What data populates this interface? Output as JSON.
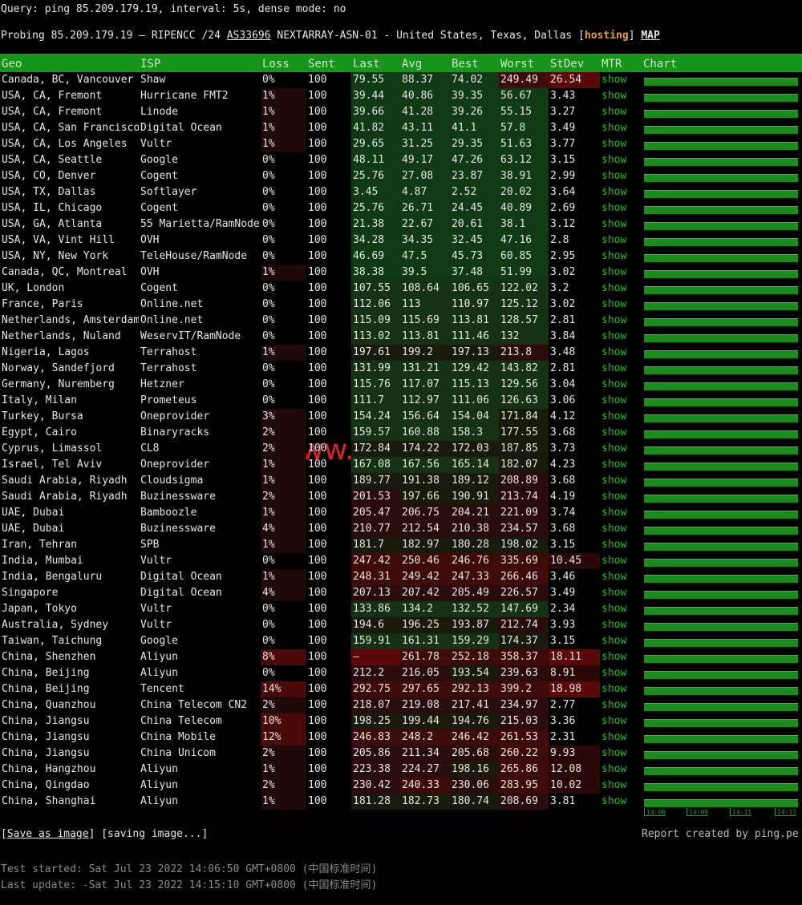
{
  "header": {
    "query": "Query: ping 85.209.179.19, interval: 5s, dense mode: no",
    "probe_prefix": "Probing 85.209.179.19 – RIPENCC /24 ",
    "asn": "AS33696",
    "probe_middle": " NEXTARRAY-ASN-01 - United States, Texas, Dallas ",
    "bracket_open": "[",
    "tag": "hosting",
    "bracket_close": "]",
    "map": "MAP"
  },
  "table": {
    "columns": [
      "Geo",
      "ISP",
      "Loss",
      "Sent",
      "Last",
      "Avg",
      "Best",
      "Worst",
      "StDev",
      "MTR",
      "Chart"
    ],
    "rows": [
      [
        "Canada, BC, Vancouver",
        "Shaw",
        "0%",
        "100",
        "79.55",
        "88.37",
        "74.02",
        "249.49",
        "26.54",
        "show"
      ],
      [
        "USA, CA, Fremont",
        "Hurricane FMT2",
        "1%",
        "100",
        "39.44",
        "40.86",
        "39.35",
        "56.67",
        "3.43",
        "show"
      ],
      [
        "USA, CA, Fremont",
        "Linode",
        "1%",
        "100",
        "39.66",
        "41.28",
        "39.26",
        "55.15",
        "3.27",
        "show"
      ],
      [
        "USA, CA, San Francisco",
        "Digital Ocean",
        "1%",
        "100",
        "41.82",
        "43.11",
        "41.1",
        "57.8",
        "3.49",
        "show"
      ],
      [
        "USA, CA, Los Angeles",
        "Vultr",
        "1%",
        "100",
        "29.65",
        "31.25",
        "29.35",
        "51.63",
        "3.77",
        "show"
      ],
      [
        "USA, CA, Seattle",
        "Google",
        "0%",
        "100",
        "48.11",
        "49.17",
        "47.26",
        "63.12",
        "3.15",
        "show"
      ],
      [
        "USA, CO, Denver",
        "Cogent",
        "0%",
        "100",
        "25.76",
        "27.08",
        "23.87",
        "38.91",
        "2.99",
        "show"
      ],
      [
        "USA, TX, Dallas",
        "Softlayer",
        "0%",
        "100",
        "3.45",
        "4.87",
        "2.52",
        "20.02",
        "3.64",
        "show"
      ],
      [
        "USA, IL, Chicago",
        "Cogent",
        "0%",
        "100",
        "25.76",
        "26.71",
        "24.45",
        "40.89",
        "2.69",
        "show"
      ],
      [
        "USA, GA, Atlanta",
        "55 Marietta/RamNode",
        "0%",
        "100",
        "21.38",
        "22.67",
        "20.61",
        "38.1",
        "3.12",
        "show"
      ],
      [
        "USA, VA, Vint Hill",
        "OVH",
        "0%",
        "100",
        "34.28",
        "34.35",
        "32.45",
        "47.16",
        "2.8",
        "show"
      ],
      [
        "USA, NY, New York",
        "TeleHouse/RamNode",
        "0%",
        "100",
        "46.69",
        "47.5",
        "45.73",
        "60.85",
        "2.95",
        "show"
      ],
      [
        "Canada, QC, Montreal",
        "OVH",
        "1%",
        "100",
        "38.38",
        "39.5",
        "37.48",
        "51.99",
        "3.02",
        "show"
      ],
      [
        "UK, London",
        "Cogent",
        "0%",
        "100",
        "107.55",
        "108.64",
        "106.65",
        "122.02",
        "3.2",
        "show"
      ],
      [
        "France, Paris",
        "Online.net",
        "0%",
        "100",
        "112.06",
        "113",
        "110.97",
        "125.12",
        "3.02",
        "show"
      ],
      [
        "Netherlands, Amsterdam",
        "Online.net",
        "0%",
        "100",
        "115.09",
        "115.69",
        "113.81",
        "128.57",
        "2.81",
        "show"
      ],
      [
        "Netherlands, Nuland",
        "WeservIT/RamNode",
        "0%",
        "100",
        "113.02",
        "113.81",
        "111.46",
        "132",
        "3.84",
        "show"
      ],
      [
        "Nigeria, Lagos",
        "Terrahost",
        "1%",
        "100",
        "197.61",
        "199.2",
        "197.13",
        "213.8",
        "3.48",
        "show"
      ],
      [
        "Norway, Sandefjord",
        "Terrahost",
        "0%",
        "100",
        "131.99",
        "131.21",
        "129.42",
        "143.82",
        "2.81",
        "show"
      ],
      [
        "Germany, Nuremberg",
        "Hetzner",
        "0%",
        "100",
        "115.76",
        "117.07",
        "115.13",
        "129.56",
        "3.04",
        "show"
      ],
      [
        "Italy, Milan",
        "Prometeus",
        "0%",
        "100",
        "111.7",
        "112.97",
        "111.06",
        "126.63",
        "3.06",
        "show"
      ],
      [
        "Turkey, Bursa",
        "Oneprovider",
        "3%",
        "100",
        "154.24",
        "156.64",
        "154.04",
        "171.84",
        "4.12",
        "show"
      ],
      [
        "Egypt, Cairo",
        "Binaryracks",
        "2%",
        "100",
        "159.57",
        "160.88",
        "158.3",
        "177.55",
        "3.68",
        "show"
      ],
      [
        "Cyprus, Limassol",
        "CL8",
        "2%",
        "100",
        "172.84",
        "174.22",
        "172.03",
        "187.85",
        "3.73",
        "show"
      ],
      [
        "Israel, Tel Aviv",
        "Oneprovider",
        "1%",
        "100",
        "167.08",
        "167.56",
        "165.14",
        "182.07",
        "4.23",
        "show"
      ],
      [
        "Saudi Arabia, Riyadh",
        "Cloudsigma",
        "1%",
        "100",
        "189.77",
        "191.38",
        "189.12",
        "208.89",
        "3.68",
        "show"
      ],
      [
        "Saudi Arabia, Riyadh",
        "Buzinessware",
        "2%",
        "100",
        "201.53",
        "197.66",
        "190.91",
        "213.74",
        "4.19",
        "show"
      ],
      [
        "UAE, Dubai",
        "Bamboozle",
        "1%",
        "100",
        "205.47",
        "206.75",
        "204.21",
        "221.09",
        "3.74",
        "show"
      ],
      [
        "UAE, Dubai",
        "Buzinessware",
        "4%",
        "100",
        "210.77",
        "212.54",
        "210.38",
        "234.57",
        "3.68",
        "show"
      ],
      [
        "Iran, Tehran",
        "SPB",
        "1%",
        "100",
        "181.7",
        "182.97",
        "180.28",
        "198.02",
        "3.15",
        "show"
      ],
      [
        "India, Mumbai",
        "Vultr",
        "0%",
        "100",
        "247.42",
        "250.46",
        "246.76",
        "335.69",
        "10.45",
        "show"
      ],
      [
        "India, Bengaluru",
        "Digital Ocean",
        "1%",
        "100",
        "248.31",
        "249.42",
        "247.33",
        "266.46",
        "3.46",
        "show"
      ],
      [
        "Singapore",
        "Digital Ocean",
        "4%",
        "100",
        "207.13",
        "207.42",
        "205.49",
        "226.57",
        "3.49",
        "show"
      ],
      [
        "Japan, Tokyo",
        "Vultr",
        "0%",
        "100",
        "133.86",
        "134.2",
        "132.52",
        "147.69",
        "2.34",
        "show"
      ],
      [
        "Australia, Sydney",
        "Vultr",
        "0%",
        "100",
        "194.6",
        "196.25",
        "193.87",
        "212.74",
        "3.93",
        "show"
      ],
      [
        "Taiwan, Taichung",
        "Google",
        "0%",
        "100",
        "159.91",
        "161.31",
        "159.29",
        "174.37",
        "3.15",
        "show"
      ],
      [
        "China, Shenzhen",
        "Aliyun",
        "8%",
        "100",
        "–",
        "261.78",
        "252.18",
        "358.37",
        "18.11",
        "show"
      ],
      [
        "China, Beijing",
        "Aliyun",
        "0%",
        "100",
        "212.2",
        "216.05",
        "193.54",
        "239.63",
        "8.91",
        "show"
      ],
      [
        "China, Beijing",
        "Tencent",
        "14%",
        "100",
        "292.75",
        "297.65",
        "292.13",
        "399.2",
        "18.98",
        "show"
      ],
      [
        "China, Quanzhou",
        "China Telecom CN2",
        "2%",
        "100",
        "218.07",
        "219.08",
        "217.41",
        "234.97",
        "2.77",
        "show"
      ],
      [
        "China, Jiangsu",
        "China Telecom",
        "10%",
        "100",
        "198.25",
        "199.44",
        "194.76",
        "215.03",
        "3.36",
        "show"
      ],
      [
        "China, Jiangsu",
        "China Mobile",
        "12%",
        "100",
        "246.83",
        "248.2",
        "246.42",
        "261.53",
        "2.31",
        "show"
      ],
      [
        "China, Jiangsu",
        "China Unicom",
        "2%",
        "100",
        "205.86",
        "211.34",
        "205.68",
        "260.22",
        "9.93",
        "show"
      ],
      [
        "China, Hangzhou",
        "Aliyun",
        "1%",
        "100",
        "223.38",
        "224.27",
        "198.16",
        "265.86",
        "12.08",
        "show"
      ],
      [
        "China, Qingdao",
        "Aliyun",
        "2%",
        "100",
        "230.42",
        "240.33",
        "230.06",
        "283.95",
        "10.02",
        "show"
      ],
      [
        "China, Shanghai",
        "Aliyun",
        "1%",
        "100",
        "181.28",
        "182.73",
        "180.74",
        "208.69",
        "3.81",
        "show"
      ]
    ],
    "chart_time_labels": [
      "14:06",
      "14:09",
      "14:11",
      "14:13"
    ]
  },
  "watermark": "www.zjzcp.com",
  "footer": {
    "save_open": "[",
    "save_link": "Save as image",
    "save_close": "]",
    "saving": "[saving image...]",
    "report": "Report created by ping.pe",
    "started": "Test started: Sat Jul 23 2022 14:06:50 GMT+0800 (中国标准时间)",
    "updated": "Last update: -Sat Jul 23 2022 14:15:10 GMT+0800 (中国标准时间)"
  }
}
